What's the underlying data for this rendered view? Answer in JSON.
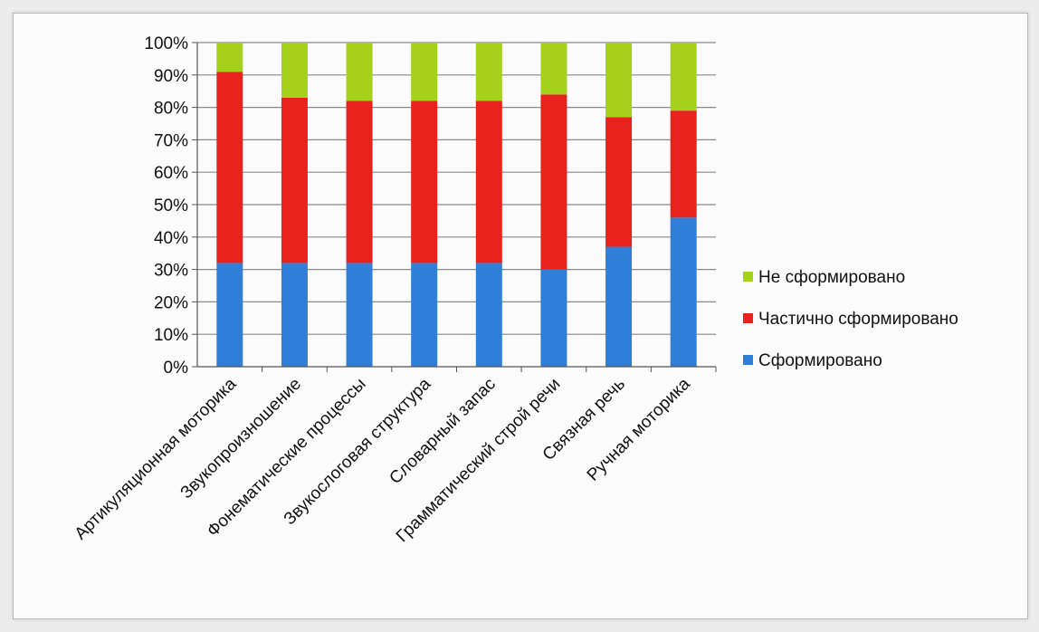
{
  "chart_data": {
    "type": "bar",
    "stacked": true,
    "percent": true,
    "categories": [
      "Артикуляционная моторика",
      "Звукопроизношение",
      "Фонематические процессы",
      "Звукослоговая структура",
      "Словарный запас",
      "Грамматический строй речи",
      "Связная речь",
      "Ручная моторика"
    ],
    "series": [
      {
        "name": "Сформировано",
        "color": "#2f7fd8",
        "values": [
          32,
          32,
          32,
          32,
          32,
          30,
          37,
          46
        ]
      },
      {
        "name": "Частично сформировано",
        "color": "#e8231e",
        "values": [
          59,
          51,
          50,
          50,
          50,
          54,
          40,
          33
        ]
      },
      {
        "name": "Не сформировано",
        "color": "#a6d11a",
        "values": [
          9,
          17,
          18,
          18,
          18,
          16,
          23,
          21
        ]
      }
    ],
    "yticks": [
      "0%",
      "10%",
      "20%",
      "30%",
      "40%",
      "50%",
      "60%",
      "70%",
      "80%",
      "90%",
      "100%"
    ],
    "ylim": [
      0,
      100
    ],
    "grid": true,
    "legend": {
      "position": "right",
      "items": [
        "Не сформировано",
        "Частично сформировано",
        "Сформировано"
      ]
    },
    "title": "",
    "xlabel": "",
    "ylabel": ""
  }
}
